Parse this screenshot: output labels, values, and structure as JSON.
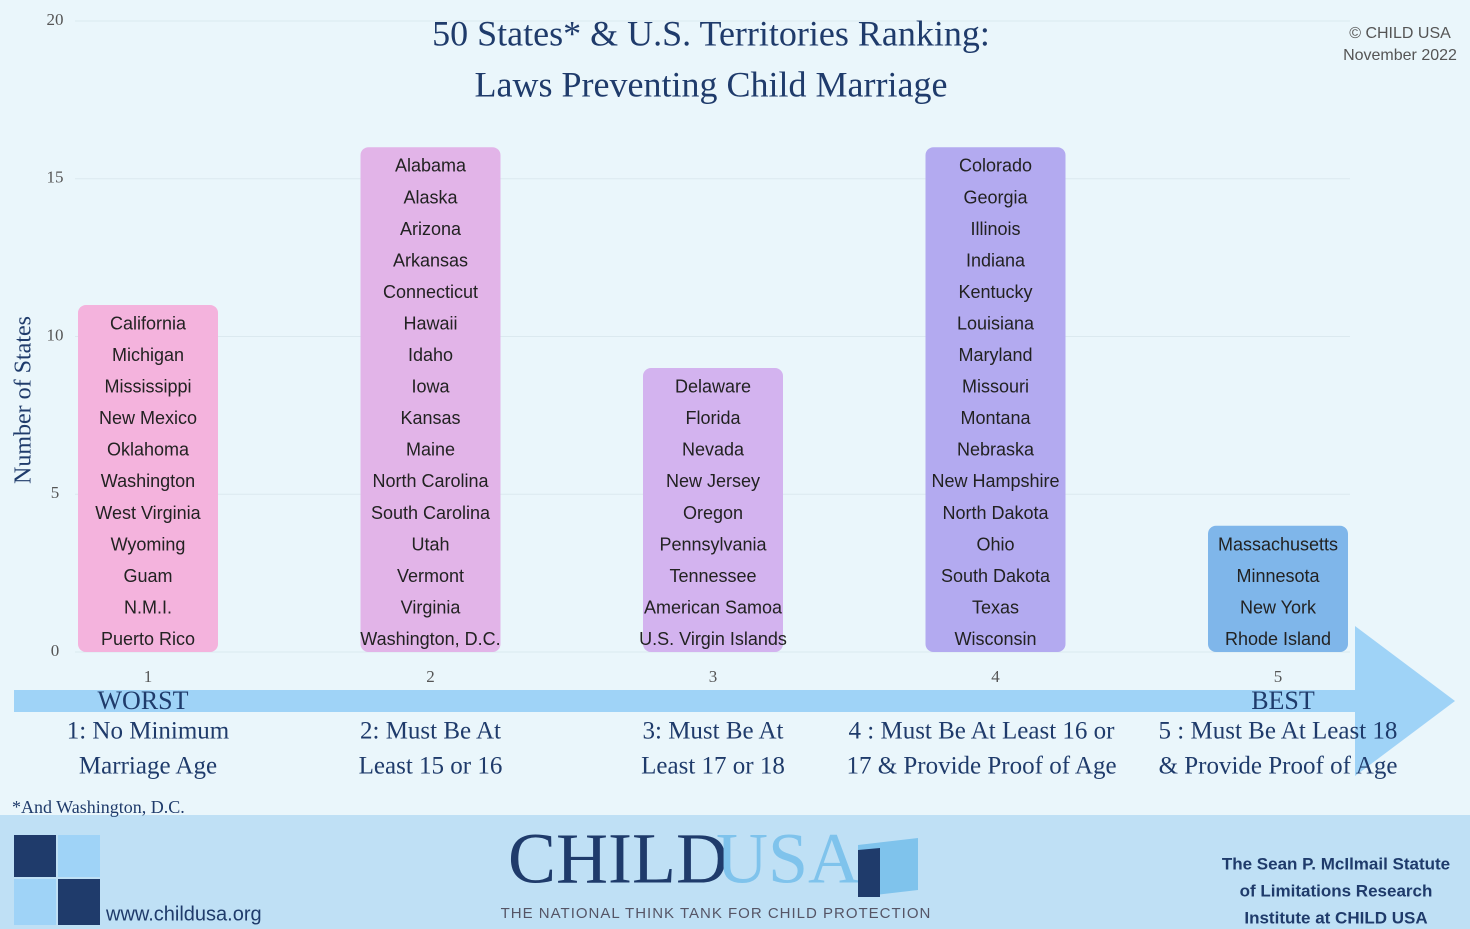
{
  "chart_data": {
    "type": "bar",
    "title_lines": [
      "50 States* & U.S. Territories Ranking:",
      "Laws Preventing Child Marriage"
    ],
    "copyright": "© CHILD USA",
    "date": "November 2022",
    "y_label": "Number of States",
    "ylim": [
      0,
      20
    ],
    "yticks": [
      0,
      5,
      10,
      15,
      20
    ],
    "grid": true,
    "categories": [
      "1",
      "2",
      "3",
      "4",
      "5"
    ],
    "values": [
      11,
      16,
      9,
      16,
      4
    ],
    "colors": [
      "#f4b3dd",
      "#e2b4e8",
      "#d3b3ef",
      "#b3aaf0",
      "#7fb6ea"
    ],
    "bar_labels": [
      [
        "California",
        "Michigan",
        "Mississippi",
        "New Mexico",
        "Oklahoma",
        "Washington",
        "West Virginia",
        "Wyoming",
        "Guam",
        "N.M.I.",
        "Puerto Rico"
      ],
      [
        "Alabama",
        "Alaska",
        "Arizona",
        "Arkansas",
        "Connecticut",
        "Hawaii",
        "Idaho",
        "Iowa",
        "Kansas",
        "Maine",
        "North Carolina",
        "South Carolina",
        "Utah",
        "Vermont",
        "Virginia",
        "Washington, D.C."
      ],
      [
        "Delaware",
        "Florida",
        "Nevada",
        "New Jersey",
        "Oregon",
        "Pennsylvania",
        "Tennessee",
        "American Samoa",
        "U.S. Virgin Islands"
      ],
      [
        "Colorado",
        "Georgia",
        "Illinois",
        "Indiana",
        "Kentucky",
        "Louisiana",
        "Maryland",
        "Missouri",
        "Montana",
        "Nebraska",
        "New Hampshire",
        "North Dakota",
        "Ohio",
        "South Dakota",
        "Texas",
        "Wisconsin"
      ],
      [
        "Massachusetts",
        "Minnesota",
        "New York",
        "Rhode Island"
      ]
    ],
    "worst_label": "WORST",
    "best_label": "BEST",
    "descriptions": [
      [
        "1:  No Minimum",
        "Marriage Age"
      ],
      [
        "2:  Must Be At",
        "Least 15 or 16"
      ],
      [
        "3:  Must Be At",
        "Least 17 or 18"
      ],
      [
        "4 : Must Be At Least 16 or",
        "17 & Provide Proof of Age"
      ],
      [
        "5 : Must Be At Least 18",
        "& Provide Proof of Age"
      ]
    ],
    "footnote": "*And Washington, D.C."
  },
  "footer": {
    "logo_child": "CHILD",
    "logo_usa": "USA",
    "tagline": "THE NATIONAL THINK TANK FOR CHILD PROTECTION",
    "website": "www.childusa.org",
    "institute_lines": [
      "The Sean P. McIlmail Statute",
      "of Limitations Research",
      "Institute at CHILD USA"
    ]
  }
}
